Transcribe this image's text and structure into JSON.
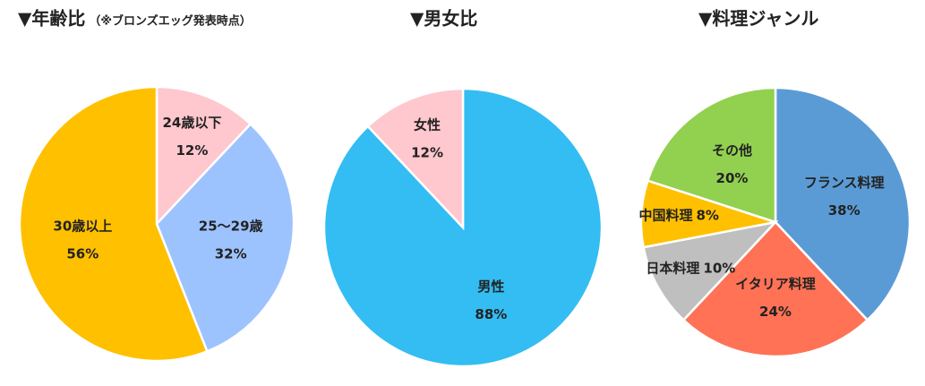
{
  "chart_data": [
    {
      "type": "pie",
      "title": "▼年齢比",
      "subtitle": "（※ブロンズエッグ発表時点）",
      "categories": [
        "24歳以下",
        "25〜29歳",
        "30歳以上"
      ],
      "values": [
        12,
        32,
        56
      ],
      "value_labels": [
        "12%",
        "32%",
        "56%"
      ],
      "colors": [
        "#FFC7CE",
        "#9DC3FF",
        "#FFC000"
      ]
    },
    {
      "type": "pie",
      "title": "▼男女比",
      "categories": [
        "男性",
        "女性"
      ],
      "values": [
        88,
        12
      ],
      "value_labels": [
        "88%",
        "12%"
      ],
      "colors": [
        "#33BDF2",
        "#FFC7CE"
      ]
    },
    {
      "type": "pie",
      "title": "▼料理ジャンル",
      "categories": [
        "フランス料理",
        "イタリア料理",
        "日本料理",
        "中国料理",
        "その他"
      ],
      "values": [
        38,
        24,
        10,
        8,
        20
      ],
      "value_labels": [
        "38%",
        "24%",
        "10%",
        "8%",
        "20%"
      ],
      "colors": [
        "#5B9BD5",
        "#FF7256",
        "#BFBFBF",
        "#FFC000",
        "#92D050"
      ]
    }
  ]
}
